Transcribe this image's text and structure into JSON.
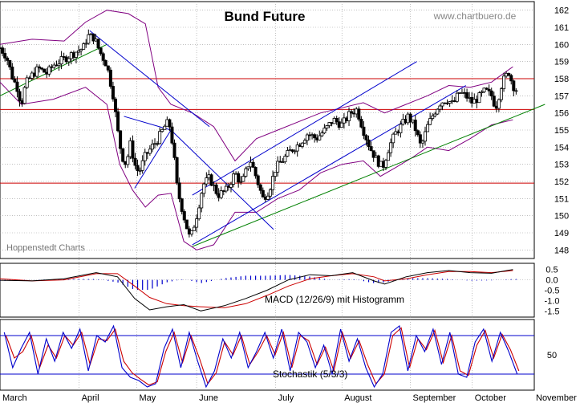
{
  "header": {
    "title": "Bund Future",
    "website": "www.chartbuero.de",
    "credit": "Hoppenstedt Charts"
  },
  "colors": {
    "price": "#000000",
    "bollinger": "#800080",
    "channel_blue": "#0000cc",
    "support_green": "#008000",
    "horizontal_red": "#cc0000",
    "macd_line": "#000000",
    "signal_line": "#cc0000",
    "histogram": "#0000cc",
    "stoch_k": "#0000cc",
    "stoch_d": "#cc0000",
    "grid": "#999999"
  },
  "chart_data": [
    {
      "type": "candlestick",
      "name_label": "Bund Future",
      "x_months": [
        "March",
        "April",
        "May",
        "June",
        "July",
        "August",
        "September",
        "October",
        "November"
      ],
      "y_ticks": [
        148,
        149,
        150,
        151,
        152,
        153,
        154,
        155,
        156,
        157,
        158,
        159,
        160,
        161,
        162
      ],
      "ylim": [
        147.5,
        162.5
      ],
      "grid": true,
      "close_series": [
        {
          "t": 0,
          "v": 159.8
        },
        {
          "t": 0.3,
          "v": 159.3
        },
        {
          "t": 0.6,
          "v": 158.0
        },
        {
          "t": 0.8,
          "v": 157.5
        },
        {
          "t": 1.0,
          "v": 156.5
        },
        {
          "t": 1.2,
          "v": 157.7
        },
        {
          "t": 1.5,
          "v": 158.2
        },
        {
          "t": 1.8,
          "v": 158.6
        },
        {
          "t": 2.2,
          "v": 158.3
        },
        {
          "t": 2.5,
          "v": 158.8
        },
        {
          "t": 2.8,
          "v": 159.0
        },
        {
          "t": 3.2,
          "v": 159.3
        },
        {
          "t": 3.6,
          "v": 159.6
        },
        {
          "t": 3.9,
          "v": 159.8
        },
        {
          "t": 4.1,
          "v": 160.5
        },
        {
          "t": 4.4,
          "v": 160.4
        },
        {
          "t": 4.7,
          "v": 159.5
        },
        {
          "t": 5.0,
          "v": 158.8
        },
        {
          "t": 5.3,
          "v": 157.0
        },
        {
          "t": 5.5,
          "v": 155.0
        },
        {
          "t": 5.7,
          "v": 153.5
        },
        {
          "t": 5.9,
          "v": 153.0
        },
        {
          "t": 6.1,
          "v": 154.2
        },
        {
          "t": 6.3,
          "v": 153.0
        },
        {
          "t": 6.5,
          "v": 152.5
        },
        {
          "t": 6.8,
          "v": 153.5
        },
        {
          "t": 7.1,
          "v": 154.0
        },
        {
          "t": 7.4,
          "v": 154.5
        },
        {
          "t": 7.7,
          "v": 155.2
        },
        {
          "t": 7.9,
          "v": 155.5
        },
        {
          "t": 8.1,
          "v": 154.0
        },
        {
          "t": 8.3,
          "v": 151.5
        },
        {
          "t": 8.5,
          "v": 150.5
        },
        {
          "t": 8.7,
          "v": 149.5
        },
        {
          "t": 8.9,
          "v": 148.6
        },
        {
          "t": 9.2,
          "v": 150.0
        },
        {
          "t": 9.5,
          "v": 151.8
        },
        {
          "t": 9.8,
          "v": 152.2
        },
        {
          "t": 10.2,
          "v": 151.2
        },
        {
          "t": 10.6,
          "v": 151.5
        },
        {
          "t": 11.0,
          "v": 152.5
        },
        {
          "t": 11.3,
          "v": 151.8
        },
        {
          "t": 11.7,
          "v": 153.3
        },
        {
          "t": 12.0,
          "v": 152.2
        },
        {
          "t": 12.3,
          "v": 151.0
        },
        {
          "t": 12.6,
          "v": 151.5
        },
        {
          "t": 12.9,
          "v": 152.8
        },
        {
          "t": 13.2,
          "v": 153.2
        },
        {
          "t": 13.6,
          "v": 153.8
        },
        {
          "t": 14.0,
          "v": 154.2
        },
        {
          "t": 14.4,
          "v": 154.8
        },
        {
          "t": 14.8,
          "v": 154.5
        },
        {
          "t": 15.2,
          "v": 155.0
        },
        {
          "t": 15.6,
          "v": 155.6
        },
        {
          "t": 16.0,
          "v": 155.3
        },
        {
          "t": 16.4,
          "v": 156.0
        },
        {
          "t": 16.7,
          "v": 156.2
        },
        {
          "t": 17.0,
          "v": 155.0
        },
        {
          "t": 17.3,
          "v": 154.0
        },
        {
          "t": 17.6,
          "v": 153.3
        },
        {
          "t": 17.9,
          "v": 152.8
        },
        {
          "t": 18.2,
          "v": 154.0
        },
        {
          "t": 18.5,
          "v": 154.8
        },
        {
          "t": 18.8,
          "v": 155.3
        },
        {
          "t": 19.1,
          "v": 155.8
        },
        {
          "t": 19.4,
          "v": 155.2
        },
        {
          "t": 19.7,
          "v": 154.0
        },
        {
          "t": 20.0,
          "v": 155.2
        },
        {
          "t": 20.3,
          "v": 156.0
        },
        {
          "t": 20.6,
          "v": 156.6
        },
        {
          "t": 20.9,
          "v": 156.8
        },
        {
          "t": 21.2,
          "v": 156.5
        },
        {
          "t": 21.5,
          "v": 157.2
        },
        {
          "t": 21.8,
          "v": 157.0
        },
        {
          "t": 22.1,
          "v": 156.6
        },
        {
          "t": 22.4,
          "v": 156.9
        },
        {
          "t": 22.7,
          "v": 157.3
        },
        {
          "t": 23.0,
          "v": 157.0
        },
        {
          "t": 23.2,
          "v": 156.3
        },
        {
          "t": 23.5,
          "v": 157.8
        },
        {
          "t": 23.8,
          "v": 158.4
        },
        {
          "t": 24.0,
          "v": 157.6
        },
        {
          "t": 24.2,
          "v": 157.3
        }
      ],
      "bollinger_upper": [
        {
          "t": 0,
          "v": 160.0
        },
        {
          "t": 1.5,
          "v": 160.3
        },
        {
          "t": 3.0,
          "v": 160.2
        },
        {
          "t": 4.0,
          "v": 161.3
        },
        {
          "t": 5.0,
          "v": 162.0
        },
        {
          "t": 6.0,
          "v": 161.8
        },
        {
          "t": 6.8,
          "v": 161.2
        },
        {
          "t": 7.4,
          "v": 157.5
        },
        {
          "t": 8.0,
          "v": 156.5
        },
        {
          "t": 9.0,
          "v": 156.0
        },
        {
          "t": 10.0,
          "v": 155.2
        },
        {
          "t": 11.0,
          "v": 153.2
        },
        {
          "t": 12.0,
          "v": 154.5
        },
        {
          "t": 13.0,
          "v": 155.0
        },
        {
          "t": 14.0,
          "v": 155.5
        },
        {
          "t": 15.0,
          "v": 156.0
        },
        {
          "t": 16.0,
          "v": 156.3
        },
        {
          "t": 17.0,
          "v": 156.6
        },
        {
          "t": 18.0,
          "v": 156.0
        },
        {
          "t": 19.0,
          "v": 156.5
        },
        {
          "t": 20.0,
          "v": 157.0
        },
        {
          "t": 21.0,
          "v": 157.6
        },
        {
          "t": 22.0,
          "v": 157.5
        },
        {
          "t": 23.0,
          "v": 157.8
        },
        {
          "t": 24.0,
          "v": 158.7
        }
      ],
      "bollinger_lower": [
        {
          "t": 0,
          "v": 157.8
        },
        {
          "t": 1.0,
          "v": 156.5
        },
        {
          "t": 2.5,
          "v": 156.8
        },
        {
          "t": 4.0,
          "v": 157.5
        },
        {
          "t": 5.0,
          "v": 156.5
        },
        {
          "t": 5.6,
          "v": 153.0
        },
        {
          "t": 6.2,
          "v": 151.5
        },
        {
          "t": 6.8,
          "v": 150.5
        },
        {
          "t": 7.4,
          "v": 151.2
        },
        {
          "t": 8.0,
          "v": 151.3
        },
        {
          "t": 8.6,
          "v": 148.5
        },
        {
          "t": 9.2,
          "v": 148.0
        },
        {
          "t": 10.0,
          "v": 148.3
        },
        {
          "t": 11.0,
          "v": 150.2
        },
        {
          "t": 12.0,
          "v": 150.2
        },
        {
          "t": 13.0,
          "v": 151.0
        },
        {
          "t": 14.0,
          "v": 151.5
        },
        {
          "t": 15.0,
          "v": 152.5
        },
        {
          "t": 16.0,
          "v": 153.0
        },
        {
          "t": 17.0,
          "v": 153.2
        },
        {
          "t": 17.8,
          "v": 152.3
        },
        {
          "t": 18.5,
          "v": 152.8
        },
        {
          "t": 19.3,
          "v": 153.4
        },
        {
          "t": 20.0,
          "v": 154.0
        },
        {
          "t": 21.0,
          "v": 153.8
        },
        {
          "t": 22.0,
          "v": 154.5
        },
        {
          "t": 23.0,
          "v": 155.3
        },
        {
          "t": 24.0,
          "v": 155.6
        }
      ],
      "trendlines": [
        {
          "color": "green",
          "t1": 0.0,
          "v1": 157.0,
          "t2": 5.0,
          "v2": 160.0
        },
        {
          "color": "green",
          "t1": 9.0,
          "v1": 148.2,
          "t2": 25.5,
          "v2": 156.5
        },
        {
          "color": "blue",
          "t1": 4.2,
          "v1": 160.8,
          "t2": 9.8,
          "v2": 155.2
        },
        {
          "color": "blue",
          "t1": 5.8,
          "v1": 155.8,
          "t2": 8.0,
          "v2": 155.0
        },
        {
          "color": "blue",
          "t1": 6.3,
          "v1": 151.6,
          "t2": 8.0,
          "v2": 155.0
        },
        {
          "color": "blue",
          "t1": 8.0,
          "v1": 155.0,
          "t2": 12.8,
          "v2": 149.2
        },
        {
          "color": "blue",
          "t1": 9.0,
          "v1": 148.3,
          "t2": 21.8,
          "v2": 157.6
        },
        {
          "color": "blue",
          "t1": 9.0,
          "v1": 151.2,
          "t2": 19.5,
          "v2": 159.0
        }
      ],
      "horizontal_levels": [
        158.0,
        156.2,
        151.9
      ]
    },
    {
      "type": "line",
      "label": "MACD (12/26/9) mit Histogramm",
      "y_ticks": [
        0.5,
        0.0,
        -0.5,
        -1.0,
        -1.5
      ],
      "ylim": [
        -1.8,
        0.8
      ],
      "macd": [
        {
          "t": 0,
          "v": -0.02
        },
        {
          "t": 1.5,
          "v": -0.05
        },
        {
          "t": 3.0,
          "v": 0.05
        },
        {
          "t": 4.5,
          "v": 0.35
        },
        {
          "t": 5.5,
          "v": 0.15
        },
        {
          "t": 6.3,
          "v": -0.9
        },
        {
          "t": 7.0,
          "v": -1.45
        },
        {
          "t": 7.8,
          "v": -1.3
        },
        {
          "t": 8.6,
          "v": -1.2
        },
        {
          "t": 9.4,
          "v": -1.5
        },
        {
          "t": 10.5,
          "v": -1.25
        },
        {
          "t": 11.5,
          "v": -0.9
        },
        {
          "t": 12.5,
          "v": -0.5
        },
        {
          "t": 13.5,
          "v": 0.0
        },
        {
          "t": 14.5,
          "v": 0.25
        },
        {
          "t": 15.5,
          "v": 0.2
        },
        {
          "t": 16.5,
          "v": 0.35
        },
        {
          "t": 17.5,
          "v": -0.05
        },
        {
          "t": 18.0,
          "v": -0.2
        },
        {
          "t": 19.0,
          "v": 0.15
        },
        {
          "t": 20.0,
          "v": 0.35
        },
        {
          "t": 21.0,
          "v": 0.45
        },
        {
          "t": 22.0,
          "v": 0.35
        },
        {
          "t": 23.0,
          "v": 0.32
        },
        {
          "t": 24.0,
          "v": 0.5
        }
      ],
      "signal": [
        {
          "t": 0,
          "v": 0.05
        },
        {
          "t": 1.5,
          "v": -0.05
        },
        {
          "t": 3.0,
          "v": 0.0
        },
        {
          "t": 4.5,
          "v": 0.3
        },
        {
          "t": 5.5,
          "v": 0.3
        },
        {
          "t": 6.3,
          "v": -0.3
        },
        {
          "t": 7.0,
          "v": -0.85
        },
        {
          "t": 7.8,
          "v": -1.15
        },
        {
          "t": 8.6,
          "v": -1.25
        },
        {
          "t": 9.4,
          "v": -1.3
        },
        {
          "t": 10.5,
          "v": -1.35
        },
        {
          "t": 11.5,
          "v": -1.15
        },
        {
          "t": 12.5,
          "v": -0.75
        },
        {
          "t": 13.5,
          "v": -0.3
        },
        {
          "t": 14.5,
          "v": 0.05
        },
        {
          "t": 15.5,
          "v": 0.2
        },
        {
          "t": 16.5,
          "v": 0.3
        },
        {
          "t": 17.5,
          "v": 0.15
        },
        {
          "t": 18.0,
          "v": -0.05
        },
        {
          "t": 19.0,
          "v": 0.05
        },
        {
          "t": 20.0,
          "v": 0.25
        },
        {
          "t": 21.0,
          "v": 0.4
        },
        {
          "t": 22.0,
          "v": 0.4
        },
        {
          "t": 23.0,
          "v": 0.35
        },
        {
          "t": 24.0,
          "v": 0.45
        }
      ]
    },
    {
      "type": "line",
      "label": "Stochastik (5/3/3)",
      "y_ticks": [
        50
      ],
      "ylim": [
        -5,
        105
      ],
      "reference_levels": [
        80,
        20
      ],
      "k_values": [
        85,
        30,
        60,
        85,
        20,
        75,
        40,
        85,
        60,
        90,
        25,
        80,
        70,
        95,
        30,
        15,
        10,
        0,
        5,
        60,
        90,
        30,
        85,
        40,
        0,
        25,
        75,
        45,
        85,
        30,
        55,
        85,
        45,
        90,
        25,
        85,
        70,
        30,
        65,
        20,
        90,
        40,
        75,
        30,
        0,
        20,
        85,
        95,
        25,
        80,
        55,
        90,
        35,
        85,
        20,
        15,
        70,
        90,
        40,
        85,
        55,
        20
      ],
      "d_values": [
        80,
        45,
        55,
        80,
        30,
        65,
        45,
        80,
        65,
        85,
        35,
        75,
        72,
        90,
        40,
        22,
        12,
        3,
        8,
        55,
        85,
        38,
        80,
        45,
        5,
        22,
        70,
        50,
        80,
        35,
        55,
        80,
        50,
        85,
        30,
        80,
        72,
        35,
        62,
        25,
        85,
        45,
        72,
        35,
        5,
        20,
        80,
        92,
        30,
        75,
        58,
        88,
        38,
        80,
        25,
        18,
        65,
        88,
        45,
        82,
        58,
        25
      ]
    }
  ]
}
